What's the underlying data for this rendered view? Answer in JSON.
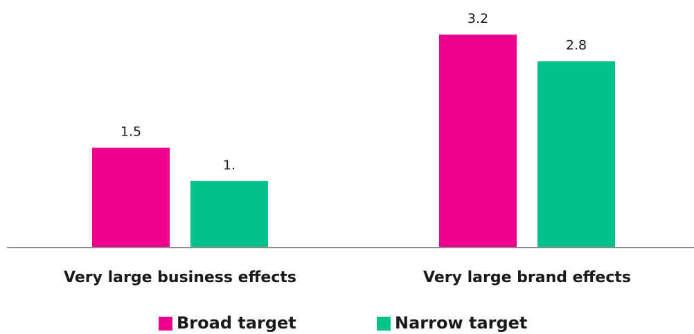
{
  "chart_data": {
    "type": "bar",
    "categories": [
      "Very large business effects",
      "Very large brand effects"
    ],
    "series": [
      {
        "name": "Broad target",
        "values": [
          1.5,
          3.2
        ],
        "labels": [
          "1.5",
          "3.2"
        ],
        "color": "#EC008C"
      },
      {
        "name": "Narrow target",
        "values": [
          1.0,
          2.8
        ],
        "labels": [
          "1.",
          "2.8"
        ],
        "color": "#00C389"
      }
    ],
    "ylim": [
      0,
      3.2
    ],
    "grid": false,
    "legend_position": "bottom",
    "axis_color": "#8c8c8c"
  }
}
